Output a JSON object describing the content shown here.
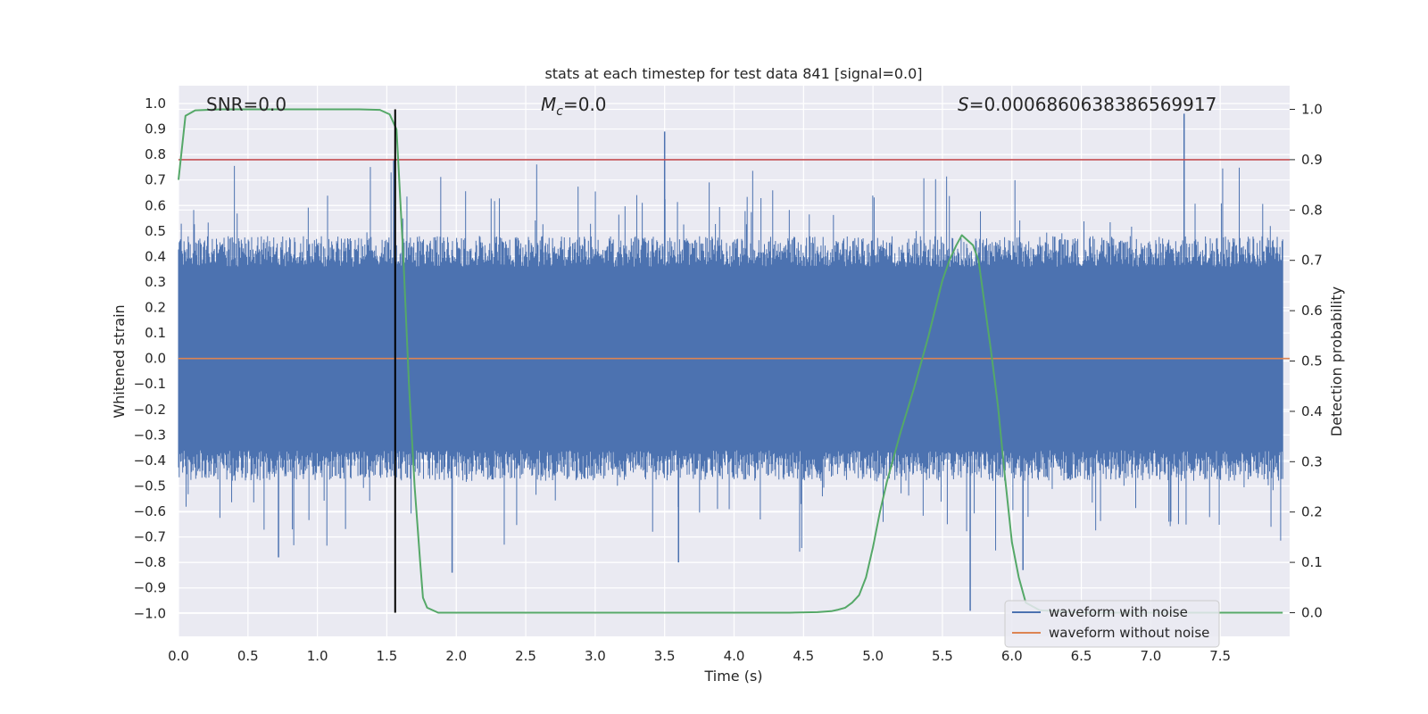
{
  "chart_data": {
    "type": "line",
    "title": "stats at each timestep for test data 841 [signal=0.0]",
    "xlabel": "Time (s)",
    "ylabel": "Whitened strain",
    "y2label": "Detection probability",
    "xlim": [
      0.0,
      8.0
    ],
    "ylim": [
      -1.09,
      1.07
    ],
    "y2lim": [
      -0.047,
      1.047
    ],
    "xticks": [
      "0.0",
      "0.5",
      "1.0",
      "1.5",
      "2.0",
      "2.5",
      "3.0",
      "3.5",
      "4.0",
      "4.5",
      "5.0",
      "5.5",
      "6.0",
      "6.5",
      "7.0",
      "7.5"
    ],
    "yticks": [
      "1.0",
      "0.9",
      "0.8",
      "0.7",
      "0.6",
      "0.5",
      "0.4",
      "0.3",
      "0.2",
      "0.1",
      "0.0",
      "−0.1",
      "−0.2",
      "−0.3",
      "−0.4",
      "−0.5",
      "−0.6",
      "−0.7",
      "−0.8",
      "−0.9",
      "−1.0"
    ],
    "y2ticks": [
      "1.0",
      "0.9",
      "0.8",
      "0.7",
      "0.6",
      "0.5",
      "0.4",
      "0.3",
      "0.2",
      "0.1",
      "0.0"
    ],
    "annotations": {
      "snr_text": "SNR=0.0",
      "mc_sym": "M",
      "mc_sub": "c",
      "mc_rest": "=0.0",
      "s_sym": "S",
      "s_rest": "=0.0006860638386569917"
    },
    "legend": {
      "location": "lower-right",
      "entries": [
        {
          "label": "waveform with noise",
          "color": "#4c72b0"
        },
        {
          "label": "waveform without noise",
          "color": "#dd8452"
        }
      ]
    },
    "series": [
      {
        "name": "waveform with noise",
        "color": "#4c72b0",
        "axis": "left",
        "description": "dense whitened noise, core amplitude about ±0.4, spikes up to about ±1.0",
        "seed": 841,
        "spike_peaks": [
          {
            "x": 1.55,
            "y": 0.78
          },
          {
            "x": 3.5,
            "y": 0.89
          },
          {
            "x": 5.7,
            "y": -0.99
          },
          {
            "x": 7.24,
            "y": 0.96
          },
          {
            "x": 6.08,
            "y": -0.83
          },
          {
            "x": 0.72,
            "y": -0.78
          },
          {
            "x": 1.97,
            "y": -0.84
          },
          {
            "x": 3.6,
            "y": -0.8
          }
        ]
      },
      {
        "name": "waveform without noise",
        "color": "#dd8452",
        "axis": "left",
        "x": [
          0.0,
          8.0
        ],
        "y": [
          0.0,
          0.0
        ]
      },
      {
        "name": "detection probability",
        "color": "#55a868",
        "axis": "right",
        "x": [
          0.0,
          0.05,
          0.12,
          0.3,
          0.6,
          1.0,
          1.3,
          1.45,
          1.52,
          1.57,
          1.62,
          1.66,
          1.7,
          1.74,
          1.76,
          1.79,
          1.87,
          2.5,
          3.5,
          4.0,
          4.4,
          4.6,
          4.7,
          4.75,
          4.8,
          4.85,
          4.9,
          4.95,
          5.0,
          5.05,
          5.1,
          5.2,
          5.3,
          5.4,
          5.5,
          5.55,
          5.6,
          5.64,
          5.68,
          5.72,
          5.76,
          5.8,
          5.85,
          5.9,
          5.95,
          6.0,
          6.05,
          6.1,
          6.2,
          6.5,
          7.0,
          7.5,
          7.95
        ],
        "y": [
          0.86,
          0.987,
          0.998,
          1.0,
          1.0,
          1.0,
          1.0,
          0.999,
          0.99,
          0.96,
          0.7,
          0.45,
          0.25,
          0.1,
          0.03,
          0.01,
          0.0,
          0.0,
          0.0,
          0.0,
          0.0,
          0.001,
          0.003,
          0.006,
          0.01,
          0.02,
          0.035,
          0.07,
          0.13,
          0.2,
          0.26,
          0.36,
          0.45,
          0.55,
          0.66,
          0.7,
          0.73,
          0.75,
          0.74,
          0.73,
          0.7,
          0.62,
          0.52,
          0.41,
          0.27,
          0.14,
          0.07,
          0.02,
          0.005,
          0.0,
          0.0,
          0.0,
          0.0
        ]
      }
    ],
    "reference_lines": [
      {
        "type": "hline",
        "axis": "right",
        "y": 0.9,
        "color": "#c44e52"
      },
      {
        "type": "vline",
        "x": 1.56,
        "y_from": 0.0,
        "y_to": 1.0,
        "axis": "right",
        "color": "#000000"
      }
    ]
  }
}
